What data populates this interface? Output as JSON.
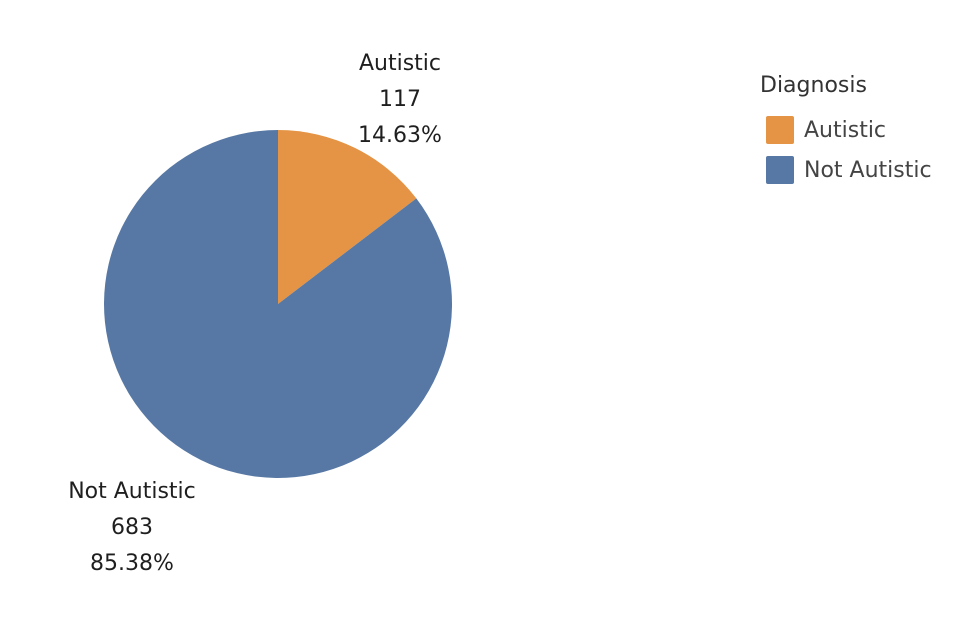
{
  "chart_data": {
    "type": "pie",
    "legend": {
      "title": "Diagnosis",
      "position": "top-right"
    },
    "slices": [
      {
        "label": "Autistic",
        "value": 117,
        "percent": "14.63%",
        "value_text": "117",
        "color": "#E49444"
      },
      {
        "label": "Not Autistic",
        "value": 683,
        "percent": "85.38%",
        "value_text": "683",
        "color": "#5778A4"
      }
    ]
  }
}
